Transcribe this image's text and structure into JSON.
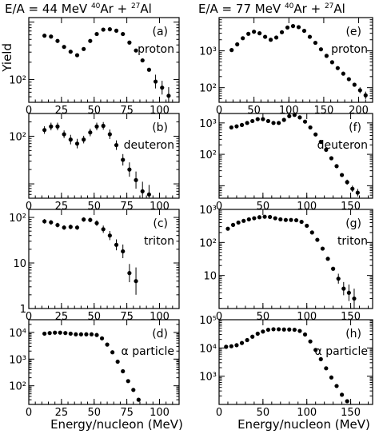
{
  "header": {
    "left": {
      "prefix": "E/A = 44 MeV ",
      "mass1": "40",
      "sym1": "Ar + ",
      "mass2": "27",
      "sym2": "Al"
    },
    "right": {
      "prefix": "E/A = 77 MeV ",
      "mass1": "40",
      "sym1": "Ar + ",
      "mass2": "27",
      "sym2": "Al"
    }
  },
  "ylabel": "Yield",
  "xlabel": "Energy/nucleon (MeV)",
  "chart_data": [
    {
      "type": "scatter",
      "panel": "(a)",
      "label": "proton",
      "yscale": "log",
      "xlim": [
        0,
        115
      ],
      "ylim": [
        40,
        1200
      ],
      "xticks": [
        0,
        25,
        50,
        75,
        100
      ],
      "xticklabels": [
        "0",
        "25",
        "50",
        "75",
        "100"
      ],
      "yticks": [
        100
      ],
      "yticklabels": [
        "10²"
      ],
      "x": [
        12,
        17,
        22,
        27,
        32,
        37,
        42,
        47,
        52,
        57,
        62,
        67,
        72,
        77,
        82,
        87,
        92,
        97,
        102,
        107
      ],
      "y": [
        580,
        560,
        470,
        370,
        305,
        265,
        340,
        470,
        620,
        740,
        750,
        710,
        620,
        440,
        320,
        215,
        148,
        92,
        72,
        52
      ],
      "yerr": [
        0,
        0,
        0,
        0,
        0,
        0,
        0,
        0,
        0,
        0,
        0,
        0,
        0,
        0,
        0,
        0,
        0,
        0.12,
        0.12,
        0.15
      ]
    },
    {
      "type": "scatter",
      "panel": "(e)",
      "label": "proton",
      "yscale": "log",
      "xlim": [
        0,
        220
      ],
      "ylim": [
        40,
        8000
      ],
      "xticks": [
        0,
        50,
        100,
        150,
        200
      ],
      "xticklabels": [
        "0",
        "50",
        "100",
        "150",
        "200"
      ],
      "yticks": [
        100,
        1000
      ],
      "yticklabels": [
        "10²",
        "10³"
      ],
      "x": [
        18,
        26,
        34,
        42,
        50,
        58,
        66,
        74,
        82,
        90,
        98,
        106,
        114,
        122,
        130,
        138,
        146,
        154,
        162,
        170,
        178,
        186,
        194,
        202,
        210
      ],
      "y": [
        1050,
        1500,
        2200,
        2900,
        3300,
        3000,
        2400,
        2000,
        2300,
        3200,
        4300,
        4700,
        4400,
        3500,
        2400,
        1650,
        1100,
        730,
        490,
        340,
        240,
        170,
        120,
        85,
        62
      ],
      "yerr": [
        0,
        0,
        0,
        0,
        0,
        0,
        0,
        0,
        0,
        0,
        0,
        0,
        0,
        0,
        0,
        0,
        0,
        0,
        0,
        0,
        0,
        0,
        0,
        0.08,
        0.1
      ]
    },
    {
      "type": "scatter",
      "panel": "(b)",
      "label": "deuteron",
      "yscale": "log",
      "xlim": [
        0,
        115
      ],
      "ylim": [
        5,
        300
      ],
      "xticks": [
        0,
        25,
        50,
        75,
        100
      ],
      "xticklabels": [
        "0",
        "25",
        "50",
        "75",
        "100"
      ],
      "yticks": [
        100
      ],
      "yticklabels": [
        "10²"
      ],
      "x": [
        12,
        17,
        22,
        27,
        32,
        37,
        42,
        47,
        52,
        57,
        62,
        67,
        72,
        77,
        82,
        87,
        92
      ],
      "y": [
        135,
        160,
        160,
        110,
        85,
        70,
        85,
        120,
        160,
        165,
        110,
        65,
        32,
        20,
        12,
        7,
        6
      ],
      "yerr": [
        0.08,
        0.08,
        0.08,
        0.08,
        0.1,
        0.1,
        0.08,
        0.08,
        0.08,
        0.08,
        0.1,
        0.1,
        0.12,
        0.15,
        0.18,
        0.2,
        0.2
      ]
    },
    {
      "type": "scatter",
      "panel": "(f)",
      "label": "deuteron",
      "yscale": "log",
      "xlim": [
        0,
        175
      ],
      "ylim": [
        4,
        2000
      ],
      "xticks": [
        0,
        50,
        100,
        150
      ],
      "xticklabels": [
        "0",
        "50",
        "100",
        "150"
      ],
      "yticks": [
        100,
        1000
      ],
      "yticklabels": [
        "10²",
        "10³"
      ],
      "x": [
        14,
        20,
        26,
        32,
        38,
        44,
        50,
        56,
        62,
        68,
        74,
        80,
        86,
        92,
        98,
        104,
        110,
        116,
        122,
        128,
        134,
        140,
        146,
        152,
        158
      ],
      "y": [
        720,
        780,
        860,
        1000,
        1150,
        1320,
        1320,
        1150,
        1000,
        1000,
        1250,
        1650,
        1800,
        1500,
        1100,
        720,
        430,
        250,
        140,
        75,
        42,
        22,
        13,
        8,
        6
      ],
      "yerr": [
        0,
        0,
        0,
        0,
        0,
        0,
        0,
        0,
        0,
        0,
        0,
        0,
        0,
        0,
        0,
        0,
        0,
        0,
        0,
        0,
        0,
        0,
        0.08,
        0.1,
        0.12
      ]
    },
    {
      "type": "scatter",
      "panel": "(c)",
      "label": "triton",
      "yscale": "log",
      "xlim": [
        0,
        115
      ],
      "ylim": [
        1,
        150
      ],
      "xticks": [
        0,
        25,
        50,
        75,
        100
      ],
      "xticklabels": [
        "0",
        "25",
        "50",
        "75",
        "100"
      ],
      "yticks": [
        1,
        10,
        100
      ],
      "yticklabels": [
        "1",
        "10",
        "10²"
      ],
      "x": [
        12,
        17,
        22,
        27,
        32,
        37,
        42,
        47,
        52,
        57,
        62,
        67,
        72,
        77,
        82
      ],
      "y": [
        82,
        78,
        68,
        60,
        62,
        60,
        90,
        88,
        75,
        55,
        40,
        25,
        18,
        6,
        4
      ],
      "yerr": [
        0.05,
        0.05,
        0.05,
        0.05,
        0.05,
        0.05,
        0.05,
        0.05,
        0.06,
        0.08,
        0.1,
        0.12,
        0.15,
        0.2,
        0.3
      ]
    },
    {
      "type": "scatter",
      "panel": "(g)",
      "label": "triton",
      "yscale": "log",
      "xlim": [
        0,
        175
      ],
      "ylim": [
        1,
        1000
      ],
      "xticks": [
        0,
        50,
        100,
        150
      ],
      "xticklabels": [
        "0",
        "50",
        "100",
        "150"
      ],
      "yticks": [
        10,
        100,
        1000
      ],
      "yticklabels": [
        "10",
        "10²",
        "10³"
      ],
      "x": [
        10,
        16,
        22,
        28,
        34,
        40,
        46,
        52,
        58,
        64,
        70,
        76,
        82,
        88,
        94,
        100,
        106,
        112,
        118,
        124,
        130,
        136,
        142,
        148,
        154
      ],
      "y": [
        260,
        340,
        400,
        450,
        500,
        540,
        580,
        600,
        590,
        540,
        500,
        480,
        480,
        470,
        420,
        320,
        200,
        120,
        65,
        32,
        16,
        8,
        4,
        3,
        2
      ],
      "yerr": [
        0,
        0,
        0,
        0,
        0,
        0,
        0,
        0,
        0,
        0,
        0,
        0,
        0,
        0,
        0,
        0,
        0,
        0,
        0,
        0,
        0,
        0.15,
        0.2,
        0.25,
        0.3
      ]
    },
    {
      "type": "scatter",
      "panel": "(d)",
      "label": "α particle",
      "yscale": "log",
      "xlim": [
        0,
        115
      ],
      "ylim": [
        20,
        30000
      ],
      "xticks": [
        0,
        25,
        50,
        75,
        100
      ],
      "xticklabels": [
        "0",
        "25",
        "50",
        "75",
        "100"
      ],
      "yticks": [
        100,
        1000,
        10000
      ],
      "yticklabels": [
        "10²",
        "10³",
        "10⁴"
      ],
      "x": [
        12,
        16,
        20,
        24,
        28,
        32,
        36,
        40,
        44,
        48,
        52,
        56,
        60,
        64,
        68,
        72,
        76,
        80,
        84
      ],
      "y": [
        9000,
        9500,
        9800,
        9800,
        9500,
        9000,
        8500,
        8500,
        8500,
        8500,
        8000,
        6000,
        3500,
        1800,
        800,
        350,
        150,
        70,
        30
      ]
    },
    {
      "type": "scatter",
      "panel": "(h)",
      "label": "α particle",
      "yscale": "log",
      "xlim": [
        0,
        175
      ],
      "ylim": [
        100,
        100000
      ],
      "xticks": [
        0,
        50,
        100,
        150
      ],
      "xticklabels": [
        "0",
        "50",
        "100",
        "150"
      ],
      "yticks": [
        1000,
        10000,
        100000
      ],
      "yticklabels": [
        "10³",
        "10⁴",
        "10⁵"
      ],
      "x": [
        8,
        14,
        20,
        26,
        32,
        38,
        44,
        50,
        56,
        62,
        68,
        74,
        80,
        86,
        92,
        98,
        104,
        110,
        116,
        122,
        128,
        134,
        140,
        146
      ],
      "y": [
        11000,
        11500,
        12500,
        15000,
        19000,
        25000,
        32000,
        38000,
        44000,
        46000,
        46000,
        45000,
        45000,
        44000,
        40000,
        30000,
        17000,
        8500,
        4000,
        1900,
        900,
        450,
        220,
        130
      ]
    }
  ]
}
